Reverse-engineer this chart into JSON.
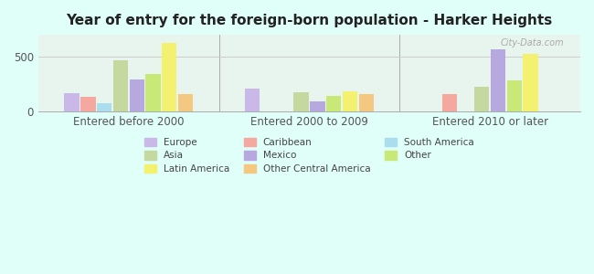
{
  "title": "Year of entry for the foreign-born population - Harker Heights",
  "groups": [
    "Entered before 2000",
    "Entered 2000 to 2009",
    "Entered 2010 or later"
  ],
  "categories": [
    "Europe",
    "Caribbean",
    "South America",
    "Asia",
    "Mexico",
    "Other",
    "Latin America",
    "Other Central America"
  ],
  "colors": {
    "Europe": "#c9b8e8",
    "Caribbean": "#f4a8a0",
    "South America": "#aaddee",
    "Asia": "#c5d8a0",
    "Mexico": "#b8a8e0",
    "Other": "#c8e878",
    "Latin America": "#f4f070",
    "Other Central America": "#f4c880"
  },
  "values": {
    "Entered before 2000": {
      "Europe": 170,
      "Caribbean": 130,
      "South America": 75,
      "Asia": 470,
      "Mexico": 295,
      "Other": 340,
      "Latin America": 630,
      "Other Central America": 155
    },
    "Entered 2000 to 2009": {
      "Europe": 210,
      "Caribbean": 0,
      "South America": 0,
      "Asia": 175,
      "Mexico": 95,
      "Other": 145,
      "Latin America": 185,
      "Other Central America": 155
    },
    "Entered 2010 or later": {
      "Europe": 0,
      "Caribbean": 155,
      "South America": 0,
      "Asia": 225,
      "Mexico": 570,
      "Other": 280,
      "Latin America": 525,
      "Other Central America": 0
    }
  },
  "ylim": [
    0,
    700
  ],
  "yticks": [
    0,
    500
  ],
  "background_color": "#e0fff8",
  "plot_bg_top": "#e8f8f0",
  "plot_bg_bottom": "#f0fff8",
  "watermark": "City-Data.com"
}
